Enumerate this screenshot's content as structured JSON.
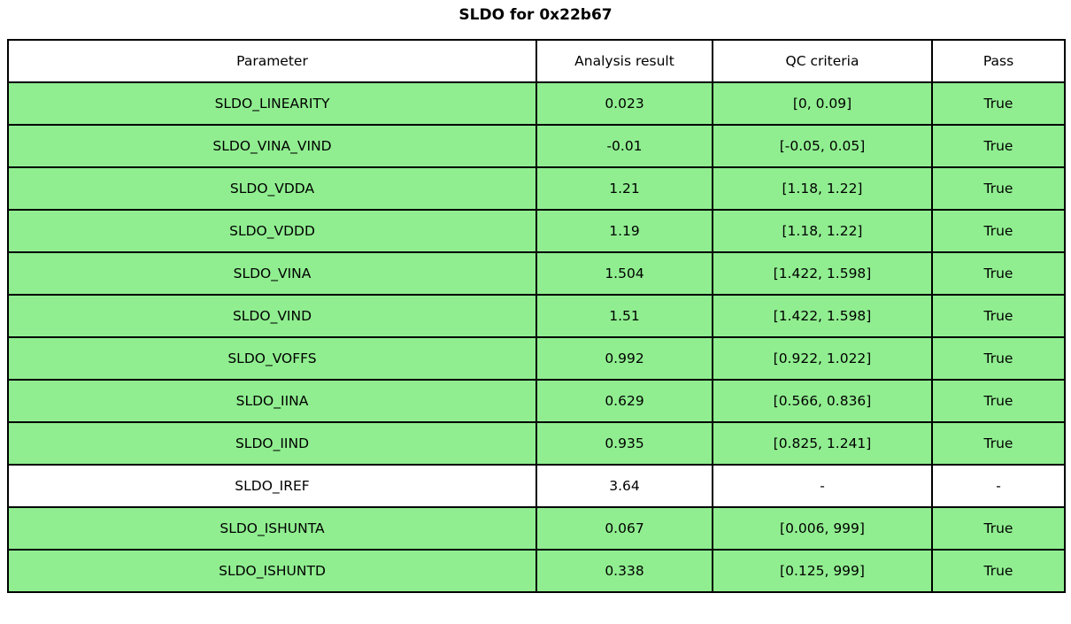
{
  "title": "SLDO for 0x22b67",
  "colors": {
    "row_pass_green": "#90EE90",
    "row_neutral_white": "#ffffff",
    "border": "#000000",
    "text": "#000000"
  },
  "chart_data": {
    "type": "table",
    "title": "SLDO for 0x22b67",
    "columns": [
      "Parameter",
      "Analysis result",
      "QC criteria",
      "Pass"
    ],
    "rows": [
      [
        "SLDO_LINEARITY",
        "0.023",
        "[0, 0.09]",
        "True"
      ],
      [
        "SLDO_VINA_VIND",
        "-0.01",
        "[-0.05, 0.05]",
        "True"
      ],
      [
        "SLDO_VDDA",
        "1.21",
        "[1.18, 1.22]",
        "True"
      ],
      [
        "SLDO_VDDD",
        "1.19",
        "[1.18, 1.22]",
        "True"
      ],
      [
        "SLDO_VINA",
        "1.504",
        "[1.422, 1.598]",
        "True"
      ],
      [
        "SLDO_VIND",
        "1.51",
        "[1.422, 1.598]",
        "True"
      ],
      [
        "SLDO_VOFFS",
        "0.992",
        "[0.922, 1.022]",
        "True"
      ],
      [
        "SLDO_IINA",
        "0.629",
        "[0.566, 0.836]",
        "True"
      ],
      [
        "SLDO_IIND",
        "0.935",
        "[0.825, 1.241]",
        "True"
      ],
      [
        "SLDO_IREF",
        "3.64",
        "-",
        "-"
      ],
      [
        "SLDO_ISHUNTA",
        "0.067",
        "[0.006, 999]",
        "True"
      ],
      [
        "SLDO_ISHUNTD",
        "0.338",
        "[0.125, 999]",
        "True"
      ]
    ],
    "row_highlight_green": [
      true,
      true,
      true,
      true,
      true,
      true,
      true,
      true,
      true,
      false,
      true,
      true
    ],
    "layout": {
      "header_background": "#ffffff",
      "pass_row_background": "#90EE90",
      "grid": true
    }
  }
}
